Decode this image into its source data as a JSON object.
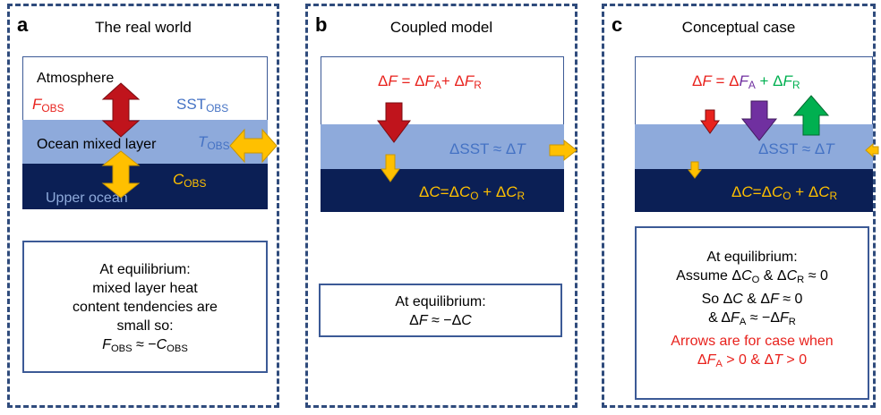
{
  "panel_a": {
    "letter": "a",
    "title": "The real world",
    "atmosphere_label": "Atmosphere",
    "mixed_layer_label": "Ocean mixed layer",
    "upper_ocean_label": "Upper ocean",
    "f_obs": "F",
    "f_obs_sub": "OBS",
    "sst_obs": "SST",
    "sst_obs_sub": "OBS",
    "t_obs": "T",
    "t_obs_sub": "OBS",
    "c_obs": "C",
    "c_obs_sub": "OBS",
    "eq_line1": "At equilibrium:",
    "eq_line2": "mixed layer heat",
    "eq_line3": "content tendencies are",
    "eq_line4": "small so:",
    "eq_line5_a": "F",
    "eq_line5_a_sub": "OBS",
    "eq_line5_mid": " ≈ −",
    "eq_line5_b": "C",
    "eq_line5_b_sub": "OBS"
  },
  "panel_b": {
    "letter": "b",
    "title": "Coupled model",
    "flux_eq": {
      "p1": "Δ",
      "p2": "F",
      "p3": " = Δ",
      "p4": "F",
      "p5": "A",
      "p6": "+ Δ",
      "p7": "F",
      "p8": "R"
    },
    "sst_eq": {
      "p1": "ΔSST ≈ Δ",
      "p2": "T"
    },
    "c_eq": {
      "p1": "Δ",
      "p2": "C",
      "p3": "=Δ",
      "p4": "C",
      "p5": "O",
      "p6": " + Δ",
      "p7": "C",
      "p8": "R"
    },
    "eq_line1": "At equilibrium:",
    "eq_line2": {
      "p1": "Δ",
      "p2": "F",
      "p3": " ≈ −Δ",
      "p4": "C"
    }
  },
  "panel_c": {
    "letter": "c",
    "title": "Conceptual case",
    "flux_eq": {
      "p1": "Δ",
      "p2": "F",
      "p3": " = Δ",
      "p4": "F",
      "p5": "A",
      "p6": " + Δ",
      "p7": "F",
      "p8": "R"
    },
    "sst_eq": {
      "p1": "ΔSST ≈ Δ",
      "p2": "T"
    },
    "c_eq": {
      "p1": "Δ",
      "p2": "C",
      "p3": "=Δ",
      "p4": "C",
      "p5": "O",
      "p6": " + Δ",
      "p7": "C",
      "p8": "R"
    },
    "eq_line1": "At equilibrium:",
    "eq_line2": {
      "p1": "Assume Δ",
      "p2": "C",
      "p3": "O",
      "p4": " & Δ",
      "p5": "C",
      "p6": "R",
      "p7": " ≈ 0"
    },
    "eq_line3": {
      "p1": "So Δ",
      "p2": "C",
      "p3": " & Δ",
      "p4": "F",
      "p5": " ≈ 0"
    },
    "eq_line4": {
      "p1": "& Δ",
      "p2": "F",
      "p3": "A",
      "p4": " ≈ −Δ",
      "p5": "F",
      "p6": "R"
    },
    "eq_line5": "Arrows are for case when",
    "eq_line6": {
      "p1": "Δ",
      "p2": "F",
      "p3": "A",
      "p4": " > 0 & Δ",
      "p5": "T",
      "p6": " > 0"
    }
  },
  "colors": {
    "red": "#e8221d",
    "blue": "#4472c4",
    "gold": "#ffc000",
    "green": "#00b050",
    "purple": "#7030a0",
    "mixed_layer": "#8eaadb",
    "upper_ocean": "#0b1f55",
    "border": "#2f4b7c"
  }
}
